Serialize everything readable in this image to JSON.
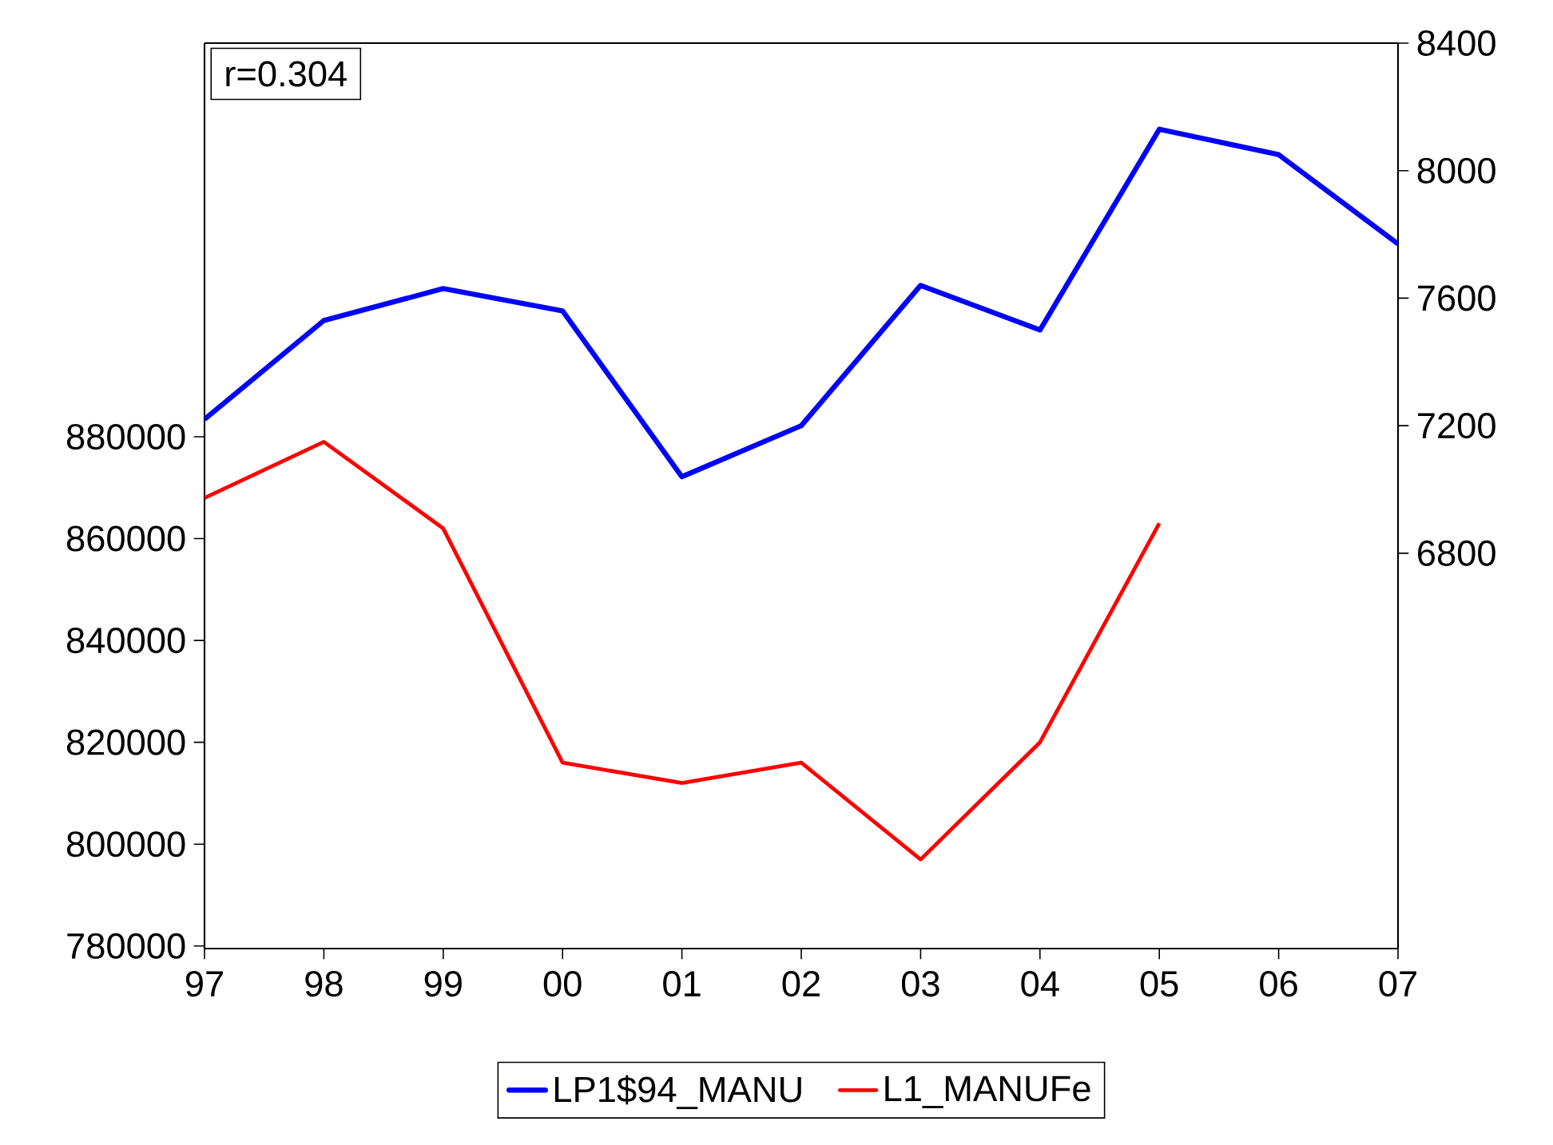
{
  "chart_data": {
    "type": "line",
    "categories": [
      "97",
      "98",
      "99",
      "00",
      "01",
      "02",
      "03",
      "04",
      "05",
      "06",
      "07"
    ],
    "series": [
      {
        "name": "LP1$94_MANU",
        "color": "#0000ff",
        "axis": "y2",
        "values": [
          7220,
          7530,
          7630,
          7560,
          7040,
          7200,
          7640,
          7500,
          8130,
          8050,
          7770
        ]
      },
      {
        "name": "L1_MANUFe",
        "color": "#ff0000",
        "values": [
          868000,
          879000,
          862000,
          816000,
          812000,
          816000,
          797000,
          820000,
          863000,
          null,
          null
        ]
      }
    ],
    "ylim": [
      779500,
      957300
    ],
    "yticks": [
      780000,
      800000,
      820000,
      840000,
      860000,
      880000
    ],
    "y2lim": [
      5560,
      8400
    ],
    "y2ticks": [
      6800,
      7200,
      7600,
      8000,
      8400
    ],
    "annotations": [
      "r=0.304"
    ],
    "legend": "bottom"
  }
}
